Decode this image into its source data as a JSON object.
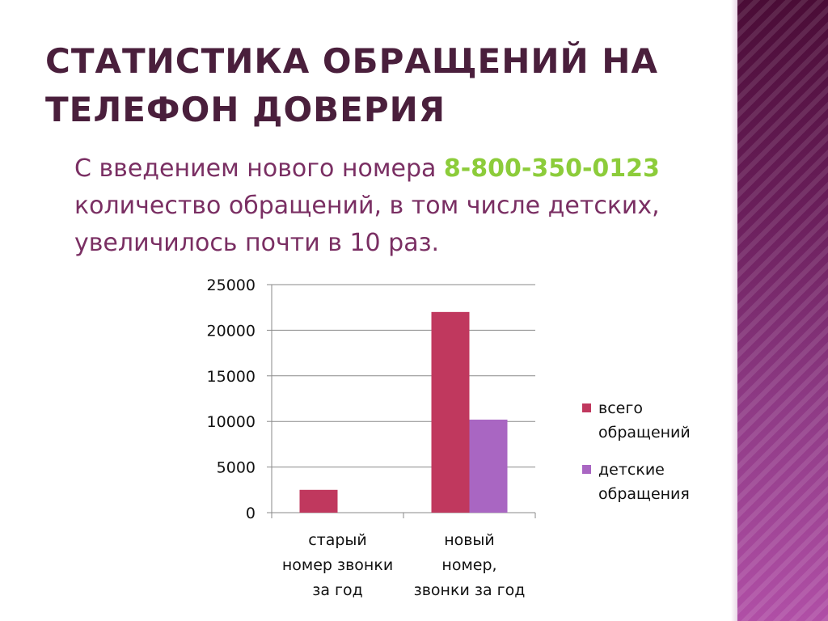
{
  "slide": {
    "title_line1": "СТАТИСТИКА ОБРАЩЕНИЙ НА",
    "title_line2": "ТЕЛЕФОН ДОВЕРИЯ",
    "text_before_phone": "С введением нового номера ",
    "phone": "8-800-350-0123",
    "text_after_phone": " количество обращений, в том числе детских, увеличилось почти в 10 раз."
  },
  "colors": {
    "title": "#4a1f3c",
    "body_text": "#7a2f63",
    "phone": "#8ccc3a",
    "series_total": "#c0385e",
    "series_children": "#a966c2",
    "side_panel": "#6b1f5c"
  },
  "chart_data": {
    "type": "bar",
    "categories": [
      [
        "старый",
        "номер звонки",
        "за год"
      ],
      [
        "новый",
        "номер,",
        "звонки за год"
      ]
    ],
    "series": [
      {
        "name": [
          "всего",
          "обращений"
        ],
        "values": [
          2500,
          22000
        ],
        "color": "#c0385e"
      },
      {
        "name": [
          "детские",
          "обращения"
        ],
        "values": [
          0,
          10200
        ],
        "color": "#a966c2"
      }
    ],
    "ylim": [
      0,
      25000
    ],
    "yticks": [
      "0",
      "5000",
      "10000",
      "15000",
      "20000",
      "25000"
    ],
    "ytick_values": [
      0,
      5000,
      10000,
      15000,
      20000,
      25000
    ],
    "grid": true,
    "legend": "right"
  }
}
